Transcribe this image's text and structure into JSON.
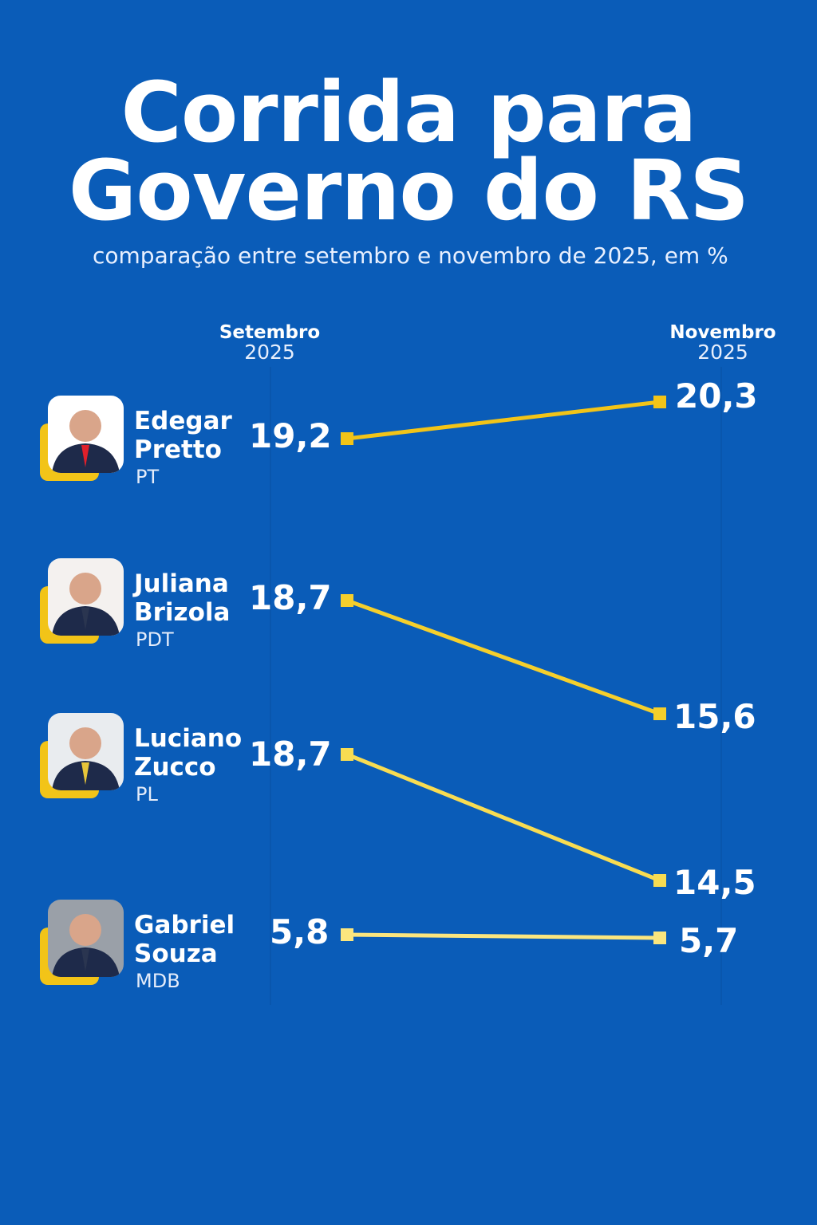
{
  "title_line1": "Corrida para",
  "title_line2": "Governo do RS",
  "subtitle": "comparação entre setembro e novembro de 2025, em %",
  "chart_data": {
    "type": "line",
    "title": "Corrida para Governo do RS",
    "subtitle": "comparação entre setembro e novembro de 2025, em %",
    "categories": [
      {
        "month": "Setembro",
        "year": "2025"
      },
      {
        "month": "Novembro",
        "year": "2025"
      }
    ],
    "series": [
      {
        "name_line1": "Edegar",
        "name_line2": "Pretto",
        "party": "PT",
        "values": [
          19.2,
          20.3
        ],
        "labels": [
          "19,2",
          "20,3"
        ],
        "color": "#f2c418"
      },
      {
        "name_line1": "Juliana",
        "name_line2": "Brizola",
        "party": "PDT",
        "values": [
          18.7,
          15.6
        ],
        "labels": [
          "18,7",
          "15,6"
        ],
        "color": "#f5cf2c"
      },
      {
        "name_line1": "Luciano",
        "name_line2": "Zucco",
        "party": "PL",
        "values": [
          18.7,
          14.5
        ],
        "labels": [
          "18,7",
          "14,5"
        ],
        "color": "#f8dc52"
      },
      {
        "name_line1": "Gabriel",
        "name_line2": "Souza",
        "party": "MDB",
        "values": [
          5.8,
          5.7
        ],
        "labels": [
          "5,8",
          "5,7"
        ],
        "color": "#fbe67e"
      }
    ]
  }
}
